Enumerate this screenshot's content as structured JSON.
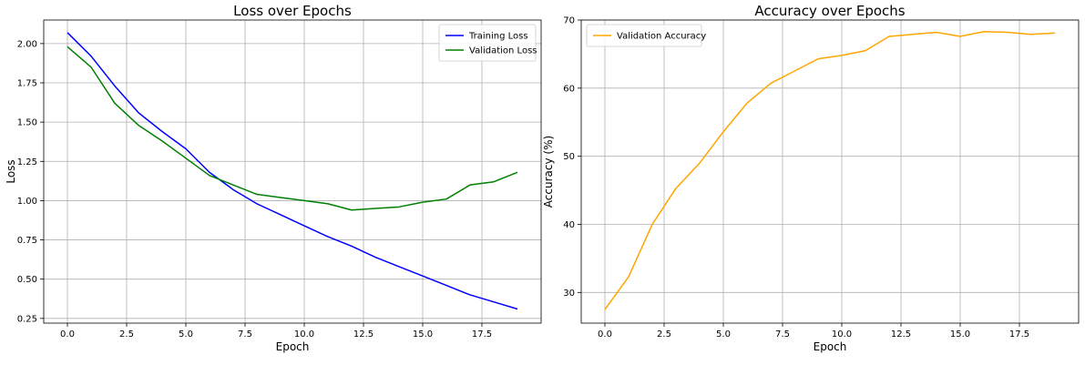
{
  "chart_data": [
    {
      "type": "line",
      "title": "Loss over Epochs",
      "xlabel": "Epoch",
      "ylabel": "Loss",
      "xlim": [
        -1.0,
        20.0
      ],
      "ylim": [
        0.22,
        2.15
      ],
      "x_ticks": [
        0.0,
        2.5,
        5.0,
        7.5,
        10.0,
        12.5,
        15.0,
        17.5
      ],
      "x_tick_labels": [
        "0.0",
        "2.5",
        "5.0",
        "7.5",
        "10.0",
        "12.5",
        "15.0",
        "17.5"
      ],
      "y_ticks": [
        0.25,
        0.5,
        0.75,
        1.0,
        1.25,
        1.5,
        1.75,
        2.0
      ],
      "y_tick_labels": [
        "0.25",
        "0.50",
        "0.75",
        "1.00",
        "1.25",
        "1.50",
        "1.75",
        "2.00"
      ],
      "grid": true,
      "legend_position": "upper right",
      "x": [
        0,
        1,
        2,
        3,
        4,
        5,
        6,
        7,
        8,
        9,
        10,
        11,
        12,
        13,
        14,
        15,
        16,
        17,
        18,
        19
      ],
      "series": [
        {
          "name": "Training Loss",
          "color": "#0000ff",
          "values": [
            2.07,
            1.92,
            1.73,
            1.56,
            1.44,
            1.33,
            1.18,
            1.07,
            0.98,
            0.91,
            0.84,
            0.77,
            0.71,
            0.64,
            0.58,
            0.52,
            0.46,
            0.4,
            0.355,
            0.31
          ]
        },
        {
          "name": "Validation Loss",
          "color": "#008000",
          "values": [
            1.98,
            1.85,
            1.62,
            1.48,
            1.38,
            1.27,
            1.16,
            1.1,
            1.04,
            1.02,
            1.0,
            0.98,
            0.94,
            0.95,
            0.96,
            0.99,
            1.01,
            1.1,
            1.12,
            1.18
          ]
        }
      ]
    },
    {
      "type": "line",
      "title": "Accuracy over Epochs",
      "xlabel": "Epoch",
      "ylabel": "Accuracy (%)",
      "xlim": [
        -1.0,
        20.0
      ],
      "ylim": [
        25.5,
        70.0
      ],
      "x_ticks": [
        0.0,
        2.5,
        5.0,
        7.5,
        10.0,
        12.5,
        15.0,
        17.5
      ],
      "x_tick_labels": [
        "0.0",
        "2.5",
        "5.0",
        "7.5",
        "10.0",
        "12.5",
        "15.0",
        "17.5"
      ],
      "y_ticks": [
        30,
        40,
        50,
        60,
        70
      ],
      "y_tick_labels": [
        "30",
        "40",
        "50",
        "60",
        "70"
      ],
      "grid": true,
      "legend_position": "upper left",
      "x": [
        0,
        1,
        2,
        3,
        4,
        5,
        6,
        7,
        8,
        9,
        10,
        11,
        12,
        13,
        14,
        15,
        16,
        17,
        18,
        19
      ],
      "series": [
        {
          "name": "Validation Accuracy",
          "color": "#ffa500",
          "values": [
            27.5,
            32.3,
            40.0,
            45.3,
            49.0,
            53.6,
            57.8,
            60.7,
            62.5,
            64.3,
            64.8,
            65.5,
            67.6,
            67.9,
            68.2,
            67.6,
            68.3,
            68.2,
            67.9,
            68.1
          ]
        }
      ]
    }
  ]
}
